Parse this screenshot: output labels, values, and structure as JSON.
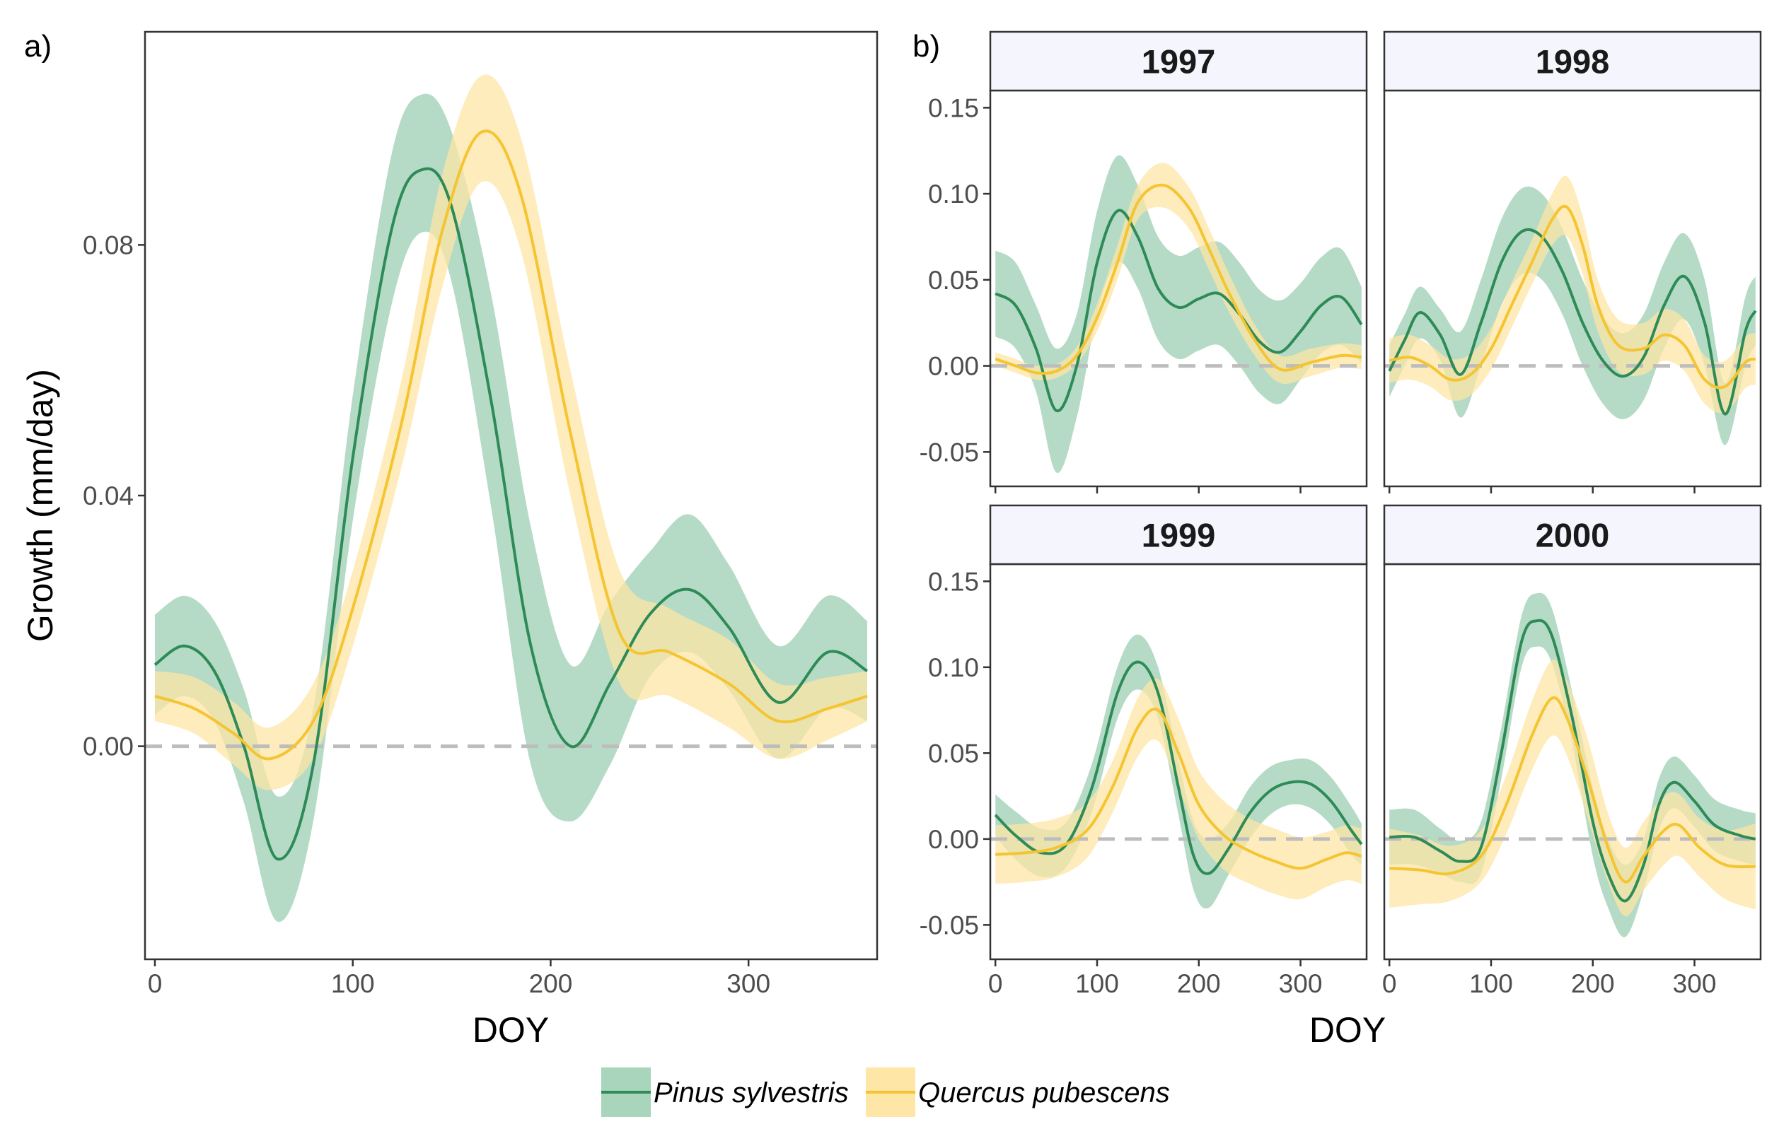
{
  "figure": {
    "panel_a_tag": "a)",
    "panel_b_tag": "b)",
    "legend": [
      {
        "label": "Pinus sylvestris",
        "line_color": "#2e8b57",
        "fill_color": "#a8d5bc"
      },
      {
        "label": "Quercus pubescens",
        "line_color": "#f5c431",
        "fill_color": "#fde6a6"
      }
    ],
    "reference_line_color": "#bdbdbd"
  },
  "chart_data": [
    {
      "id": "panel_a",
      "type": "line",
      "title": "",
      "xlabel": "DOY",
      "ylabel": "Growth (mm/day)",
      "xlim": [
        -5,
        365
      ],
      "ylim": [
        -0.034,
        0.114
      ],
      "xticks": [
        0,
        100,
        200,
        300
      ],
      "yticks": [
        0.0,
        0.04,
        0.08
      ],
      "ytick_labels": [
        "0.00",
        "0.04",
        "0.08"
      ],
      "reference_y": 0,
      "series": [
        {
          "name": "Pinus sylvestris",
          "x": [
            0,
            15,
            30,
            45,
            62,
            80,
            100,
            120,
            135,
            150,
            170,
            190,
            210,
            230,
            250,
            270,
            290,
            315,
            340,
            360
          ],
          "y": [
            0.013,
            0.016,
            0.012,
            0.0,
            -0.018,
            -0.003,
            0.046,
            0.083,
            0.092,
            0.086,
            0.055,
            0.016,
            0.0,
            0.01,
            0.021,
            0.025,
            0.019,
            0.007,
            0.015,
            0.012
          ],
          "lower": [
            0.005,
            0.008,
            0.004,
            -0.009,
            -0.028,
            -0.012,
            0.036,
            0.071,
            0.082,
            0.074,
            0.038,
            -0.003,
            -0.012,
            -0.003,
            0.011,
            0.015,
            0.009,
            -0.002,
            0.006,
            0.004
          ],
          "upper": [
            0.021,
            0.024,
            0.02,
            0.009,
            -0.008,
            0.006,
            0.056,
            0.095,
            0.104,
            0.098,
            0.072,
            0.035,
            0.013,
            0.023,
            0.031,
            0.037,
            0.029,
            0.016,
            0.024,
            0.02
          ]
        },
        {
          "name": "Quercus pubescens",
          "x": [
            0,
            20,
            40,
            58,
            80,
            100,
            125,
            145,
            165,
            185,
            210,
            235,
            260,
            290,
            315,
            340,
            360
          ],
          "y": [
            0.008,
            0.006,
            0.002,
            -0.002,
            0.004,
            0.022,
            0.052,
            0.082,
            0.098,
            0.088,
            0.05,
            0.018,
            0.015,
            0.01,
            0.004,
            0.006,
            0.008
          ],
          "lower": [
            0.004,
            0.002,
            -0.003,
            -0.007,
            -0.002,
            0.016,
            0.045,
            0.073,
            0.09,
            0.079,
            0.04,
            0.01,
            0.008,
            0.003,
            -0.002,
            0.001,
            0.004
          ],
          "upper": [
            0.012,
            0.011,
            0.007,
            0.003,
            0.01,
            0.028,
            0.059,
            0.091,
            0.107,
            0.097,
            0.06,
            0.028,
            0.022,
            0.017,
            0.01,
            0.011,
            0.012
          ]
        }
      ]
    },
    {
      "id": "panel_1997",
      "type": "line",
      "title": "1997",
      "xlim": [
        -5,
        365
      ],
      "ylim": [
        -0.07,
        0.16
      ],
      "xticks": [
        0,
        100,
        200,
        300
      ],
      "yticks": [
        -0.05,
        0.0,
        0.05,
        0.1,
        0.15
      ],
      "ytick_labels": [
        "-0.05",
        "0.00",
        "0.05",
        "0.10",
        "0.15"
      ],
      "reference_y": 0,
      "series": [
        {
          "name": "Pinus sylvestris",
          "x": [
            0,
            20,
            40,
            60,
            80,
            100,
            120,
            140,
            160,
            180,
            200,
            220,
            240,
            260,
            280,
            300,
            320,
            340,
            360
          ],
          "y": [
            0.042,
            0.035,
            0.01,
            -0.026,
            0.0,
            0.06,
            0.09,
            0.075,
            0.045,
            0.034,
            0.039,
            0.042,
            0.03,
            0.014,
            0.008,
            0.02,
            0.035,
            0.04,
            0.024
          ],
          "lower": [
            0.017,
            0.01,
            -0.015,
            -0.062,
            -0.03,
            0.03,
            0.06,
            0.045,
            0.015,
            0.004,
            0.009,
            0.012,
            0.0,
            -0.016,
            -0.022,
            -0.008,
            0.007,
            0.012,
            0.002
          ],
          "upper": [
            0.067,
            0.06,
            0.035,
            0.01,
            0.03,
            0.09,
            0.122,
            0.105,
            0.075,
            0.064,
            0.069,
            0.072,
            0.06,
            0.044,
            0.038,
            0.048,
            0.063,
            0.068,
            0.046
          ]
        },
        {
          "name": "Quercus pubescens",
          "x": [
            0,
            20,
            40,
            60,
            80,
            100,
            120,
            140,
            165,
            190,
            210,
            230,
            255,
            280,
            310,
            340,
            360
          ],
          "y": [
            0.004,
            0.0,
            -0.004,
            -0.003,
            0.006,
            0.028,
            0.06,
            0.095,
            0.105,
            0.092,
            0.068,
            0.042,
            0.015,
            -0.002,
            0.002,
            0.006,
            0.005
          ],
          "lower": [
            0.0,
            -0.004,
            -0.008,
            -0.007,
            0.001,
            0.02,
            0.05,
            0.085,
            0.092,
            0.08,
            0.056,
            0.031,
            0.006,
            -0.01,
            -0.006,
            -0.001,
            -0.002
          ],
          "upper": [
            0.008,
            0.004,
            0.0,
            0.001,
            0.011,
            0.036,
            0.07,
            0.105,
            0.118,
            0.104,
            0.08,
            0.053,
            0.024,
            0.006,
            0.01,
            0.013,
            0.012
          ]
        }
      ]
    },
    {
      "id": "panel_1998",
      "type": "line",
      "title": "1998",
      "xlim": [
        -5,
        365
      ],
      "ylim": [
        -0.07,
        0.16
      ],
      "xticks": [
        0,
        100,
        200,
        300
      ],
      "yticks": [
        -0.05,
        0.0,
        0.05,
        0.1,
        0.15
      ],
      "ytick_labels": [
        "-0.05",
        "0.00",
        "0.05",
        "0.10",
        "0.15"
      ],
      "reference_y": 0,
      "series": [
        {
          "name": "Pinus sylvestris",
          "x": [
            0,
            15,
            30,
            50,
            70,
            90,
            110,
            130,
            150,
            170,
            190,
            210,
            230,
            250,
            270,
            290,
            310,
            330,
            350,
            360
          ],
          "y": [
            -0.003,
            0.015,
            0.031,
            0.018,
            -0.005,
            0.025,
            0.06,
            0.078,
            0.075,
            0.055,
            0.025,
            0.003,
            -0.006,
            0.005,
            0.035,
            0.052,
            0.025,
            -0.028,
            0.02,
            0.032
          ],
          "lower": [
            -0.018,
            0.0,
            0.016,
            0.003,
            -0.03,
            0.0,
            0.035,
            0.053,
            0.05,
            0.03,
            0.0,
            -0.022,
            -0.031,
            -0.02,
            0.01,
            0.027,
            0.0,
            -0.046,
            0.0,
            0.012
          ],
          "upper": [
            0.012,
            0.03,
            0.046,
            0.033,
            0.02,
            0.05,
            0.085,
            0.103,
            0.1,
            0.08,
            0.05,
            0.028,
            0.019,
            0.03,
            0.06,
            0.077,
            0.05,
            -0.01,
            0.04,
            0.052
          ]
        },
        {
          "name": "Quercus pubescens",
          "x": [
            0,
            20,
            40,
            60,
            80,
            100,
            120,
            140,
            160,
            175,
            190,
            205,
            225,
            250,
            270,
            290,
            310,
            330,
            350,
            360
          ],
          "y": [
            0.003,
            0.005,
            0.0,
            -0.008,
            -0.005,
            0.01,
            0.035,
            0.06,
            0.085,
            0.092,
            0.07,
            0.035,
            0.012,
            0.01,
            0.018,
            0.012,
            -0.008,
            -0.012,
            0.002,
            0.004
          ],
          "lower": [
            -0.01,
            -0.008,
            -0.012,
            -0.02,
            -0.017,
            -0.002,
            0.022,
            0.047,
            0.07,
            0.075,
            0.053,
            0.02,
            -0.003,
            -0.005,
            0.003,
            -0.003,
            -0.022,
            -0.027,
            -0.013,
            -0.011
          ],
          "upper": [
            0.016,
            0.018,
            0.012,
            0.004,
            0.007,
            0.022,
            0.048,
            0.073,
            0.1,
            0.11,
            0.087,
            0.05,
            0.027,
            0.025,
            0.033,
            0.027,
            0.006,
            0.003,
            0.017,
            0.019
          ]
        }
      ]
    },
    {
      "id": "panel_1999",
      "type": "line",
      "title": "1999",
      "xlim": [
        -5,
        365
      ],
      "ylim": [
        -0.07,
        0.16
      ],
      "xticks": [
        0,
        100,
        200,
        300
      ],
      "yticks": [
        -0.05,
        0.0,
        0.05,
        0.1,
        0.15
      ],
      "ytick_labels": [
        "-0.05",
        "0.00",
        "0.05",
        "0.10",
        "0.15"
      ],
      "reference_y": 0,
      "series": [
        {
          "name": "Pinus sylvestris",
          "x": [
            0,
            20,
            45,
            70,
            95,
            120,
            140,
            160,
            180,
            195,
            210,
            230,
            250,
            270,
            290,
            310,
            330,
            350,
            360
          ],
          "y": [
            0.014,
            0.002,
            -0.008,
            -0.003,
            0.03,
            0.085,
            0.103,
            0.085,
            0.03,
            -0.01,
            -0.02,
            -0.005,
            0.015,
            0.028,
            0.033,
            0.032,
            0.022,
            0.005,
            -0.003
          ],
          "lower": [
            0.002,
            -0.012,
            -0.022,
            -0.016,
            0.016,
            0.07,
            0.087,
            0.07,
            0.014,
            -0.03,
            -0.04,
            -0.02,
            0.0,
            0.014,
            0.02,
            0.018,
            0.008,
            -0.009,
            -0.015
          ],
          "upper": [
            0.026,
            0.016,
            0.006,
            0.01,
            0.044,
            0.1,
            0.119,
            0.1,
            0.046,
            0.01,
            0.0,
            0.01,
            0.03,
            0.042,
            0.046,
            0.046,
            0.036,
            0.019,
            0.009
          ]
        },
        {
          "name": "Quercus pubescens",
          "x": [
            0,
            30,
            60,
            90,
            115,
            140,
            160,
            180,
            200,
            225,
            250,
            275,
            300,
            325,
            345,
            360
          ],
          "y": [
            -0.009,
            -0.008,
            -0.005,
            0.005,
            0.03,
            0.065,
            0.075,
            0.05,
            0.02,
            0.002,
            -0.007,
            -0.013,
            -0.017,
            -0.012,
            -0.008,
            -0.01
          ],
          "lower": [
            -0.026,
            -0.025,
            -0.022,
            -0.011,
            0.015,
            0.048,
            0.057,
            0.03,
            0.0,
            -0.018,
            -0.026,
            -0.032,
            -0.035,
            -0.028,
            -0.024,
            -0.026
          ],
          "upper": [
            0.008,
            0.009,
            0.012,
            0.021,
            0.045,
            0.082,
            0.093,
            0.07,
            0.04,
            0.022,
            0.012,
            0.006,
            0.001,
            0.004,
            0.008,
            0.006
          ]
        }
      ]
    },
    {
      "id": "panel_2000",
      "type": "line",
      "title": "2000",
      "xlim": [
        -5,
        365
      ],
      "ylim": [
        -0.07,
        0.16
      ],
      "xticks": [
        0,
        100,
        200,
        300
      ],
      "yticks": [
        -0.05,
        0.0,
        0.05,
        0.1,
        0.15
      ],
      "ytick_labels": [
        "-0.05",
        "0.00",
        "0.05",
        "0.10",
        "0.15"
      ],
      "reference_y": 0,
      "series": [
        {
          "name": "Pinus sylvestris",
          "x": [
            0,
            25,
            50,
            70,
            90,
            110,
            130,
            145,
            160,
            180,
            200,
            215,
            232,
            250,
            265,
            280,
            300,
            320,
            345,
            360
          ],
          "y": [
            0.001,
            0.001,
            -0.007,
            -0.013,
            -0.005,
            0.05,
            0.115,
            0.127,
            0.118,
            0.07,
            0.01,
            -0.02,
            -0.036,
            -0.015,
            0.02,
            0.033,
            0.022,
            0.008,
            0.002,
            0.0
          ],
          "lower": [
            -0.015,
            -0.015,
            -0.02,
            -0.025,
            -0.02,
            0.035,
            0.1,
            0.112,
            0.102,
            0.055,
            -0.01,
            -0.04,
            -0.057,
            -0.03,
            0.005,
            0.018,
            0.007,
            -0.007,
            -0.013,
            -0.015
          ],
          "upper": [
            0.017,
            0.017,
            0.006,
            -0.001,
            0.01,
            0.065,
            0.13,
            0.143,
            0.134,
            0.085,
            0.03,
            0.0,
            -0.015,
            0.0,
            0.035,
            0.048,
            0.037,
            0.023,
            0.017,
            0.015
          ]
        },
        {
          "name": "Quercus pubescens",
          "x": [
            0,
            30,
            60,
            90,
            115,
            140,
            160,
            175,
            195,
            215,
            232,
            250,
            270,
            285,
            305,
            330,
            360
          ],
          "y": [
            -0.017,
            -0.018,
            -0.02,
            -0.01,
            0.02,
            0.06,
            0.082,
            0.07,
            0.035,
            -0.005,
            -0.025,
            -0.01,
            0.005,
            0.008,
            -0.005,
            -0.015,
            -0.016
          ],
          "lower": [
            -0.04,
            -0.038,
            -0.036,
            -0.025,
            0.003,
            0.04,
            0.06,
            0.048,
            0.012,
            -0.025,
            -0.045,
            -0.03,
            -0.015,
            -0.01,
            -0.022,
            -0.035,
            -0.041
          ],
          "upper": [
            0.006,
            0.002,
            -0.004,
            0.005,
            0.037,
            0.08,
            0.104,
            0.092,
            0.058,
            0.015,
            -0.005,
            0.01,
            0.025,
            0.026,
            0.012,
            0.005,
            0.009
          ]
        }
      ]
    }
  ],
  "panel_b_xlabel": "DOY"
}
